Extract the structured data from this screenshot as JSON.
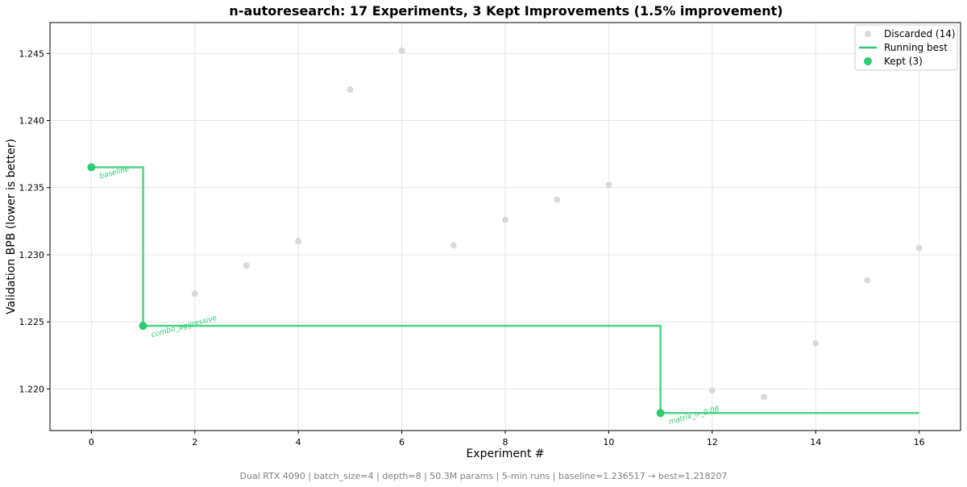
{
  "chart_data": {
    "type": "scatter",
    "title": "n-autoresearch: 17 Experiments, 3 Kept Improvements (1.5% improvement)",
    "xlabel": "Experiment #",
    "ylabel": "Validation BPB (lower is better)",
    "xlim": [
      -0.8,
      16.8
    ],
    "ylim": [
      1.2169,
      1.2473
    ],
    "x_ticks": [
      "0",
      "2",
      "4",
      "6",
      "8",
      "10",
      "12",
      "14",
      "16"
    ],
    "y_ticks": [
      "1.220",
      "1.225",
      "1.230",
      "1.235",
      "1.240",
      "1.245"
    ],
    "grid": true,
    "legend_position": "top-right",
    "footer": "Dual RTX 4090 | batch_size=4 | depth=8 | 50.3M params | 5-min runs | baseline=1.236517 → best=1.218207",
    "colors": {
      "kept": "#2ecc71",
      "discarded": "#d9d9d9",
      "running_best": "#2ecc71"
    },
    "series": [
      {
        "name": "Discarded (14)",
        "x": [
          2,
          3,
          4,
          5,
          6,
          7,
          8,
          9,
          10,
          12,
          13,
          14,
          15,
          16
        ],
        "y": [
          1.2271,
          1.2292,
          1.231,
          1.2423,
          1.2452,
          1.2307,
          1.2326,
          1.2341,
          1.2352,
          1.2199,
          1.2194,
          1.2234,
          1.2281,
          1.2305
        ]
      },
      {
        "name": "Running best",
        "x": [
          0,
          1,
          11,
          16
        ],
        "y": [
          1.236517,
          1.2247,
          1.218207,
          1.218207
        ]
      },
      {
        "name": "Kept (3)",
        "x": [
          0,
          1,
          11
        ],
        "y": [
          1.236517,
          1.2247,
          1.218207
        ],
        "labels": [
          "baseline",
          "combo_aggressive",
          "matrix_lr_0.08"
        ]
      }
    ]
  }
}
